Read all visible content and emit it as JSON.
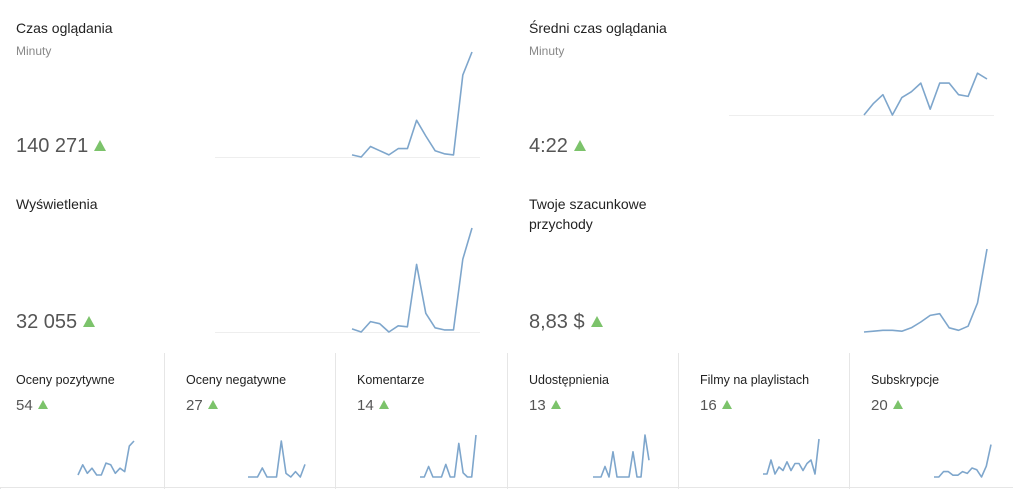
{
  "colors": {
    "line": "#7ea6cc",
    "up": "#7cc36b",
    "border": "#e6e6e6"
  },
  "cards": [
    {
      "title": "Czas oglądania",
      "subtitle": "Minuty",
      "value": "140 271",
      "series": [
        0.02,
        0.0,
        0.1,
        0.06,
        0.02,
        0.08,
        0.08,
        0.35,
        0.2,
        0.06,
        0.03,
        0.02,
        0.78,
        1.0
      ]
    },
    {
      "title": "Średni czas oglądania",
      "subtitle": "Minuty",
      "value": "4:22",
      "series": [
        0.0,
        0.2,
        0.35,
        0.0,
        0.3,
        0.4,
        0.55,
        0.1,
        0.55,
        0.55,
        0.35,
        0.32,
        0.72,
        0.62
      ]
    },
    {
      "title": "Wyświetlenia",
      "subtitle": "",
      "value": "32 055",
      "series": [
        0.03,
        0.0,
        0.1,
        0.08,
        0.0,
        0.06,
        0.05,
        0.65,
        0.18,
        0.04,
        0.02,
        0.02,
        0.7,
        1.0
      ]
    },
    {
      "title": "Twoje szacunkowe przychody",
      "subtitle": "",
      "value": "8,83 $",
      "series": [
        0.0,
        0.01,
        0.02,
        0.02,
        0.01,
        0.05,
        0.12,
        0.2,
        0.22,
        0.05,
        0.02,
        0.07,
        0.35,
        1.0
      ]
    }
  ],
  "small_cards": [
    {
      "title": "Oceny pozytywne",
      "value": "54",
      "series": [
        0.0,
        0.3,
        0.05,
        0.2,
        0.0,
        0.0,
        0.35,
        0.3,
        0.05,
        0.2,
        0.1,
        0.85,
        1.0
      ]
    },
    {
      "title": "Oceny negatywne",
      "value": "27",
      "series": [
        0.0,
        0.0,
        0.0,
        0.25,
        0.0,
        0.0,
        0.0,
        1.0,
        0.1,
        0.0,
        0.15,
        0.0,
        0.35
      ]
    },
    {
      "title": "Komentarze",
      "value": "14",
      "series": [
        0.0,
        0.0,
        0.25,
        0.0,
        0.0,
        0.0,
        0.3,
        0.0,
        0.0,
        0.8,
        0.1,
        0.0,
        0.0,
        1.0
      ]
    },
    {
      "title": "Udostępnienia",
      "value": "13",
      "series": [
        0.0,
        0.0,
        0.0,
        0.25,
        0.0,
        0.6,
        0.0,
        0.0,
        0.0,
        0.0,
        0.6,
        0.0,
        0.0,
        1.0,
        0.4
      ]
    },
    {
      "title": "Filmy na playlistach",
      "value": "16",
      "series": [
        0.0,
        0.0,
        0.4,
        0.0,
        0.2,
        0.1,
        0.35,
        0.1,
        0.3,
        0.3,
        0.1,
        0.3,
        0.4,
        0.0,
        1.0
      ]
    },
    {
      "title": "Subskrypcje",
      "value": "20",
      "series": [
        0.0,
        0.0,
        0.15,
        0.15,
        0.05,
        0.05,
        0.15,
        0.1,
        0.25,
        0.2,
        0.0,
        0.3,
        0.9
      ]
    }
  ]
}
